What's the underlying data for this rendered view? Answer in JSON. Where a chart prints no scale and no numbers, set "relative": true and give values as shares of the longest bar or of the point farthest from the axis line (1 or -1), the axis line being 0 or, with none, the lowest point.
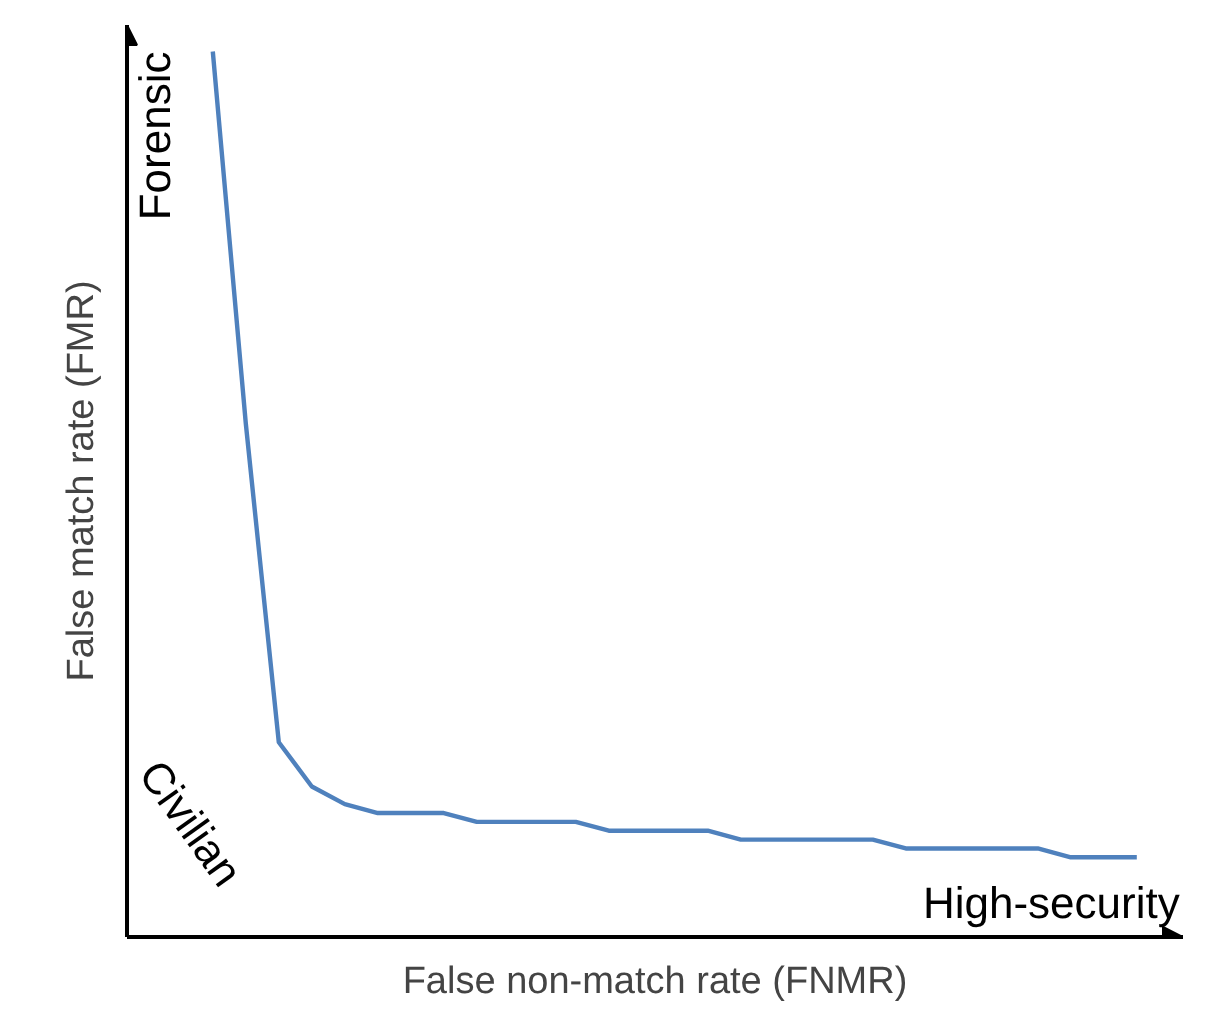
{
  "chart_data": {
    "type": "line",
    "relative": true,
    "xlabel": "False non-match rate (FNMR)",
    "ylabel": "False match rate (FMR)",
    "color": "#4f81bd",
    "categories": [
      null,
      null,
      null,
      null,
      null,
      null,
      null,
      null,
      null,
      null,
      null,
      null,
      null,
      null,
      null,
      null,
      null,
      null,
      null,
      null,
      null,
      null,
      null,
      null,
      null,
      null,
      null,
      null,
      null
    ],
    "values": [
      1.0,
      0.58,
      0.22,
      0.17,
      0.15,
      0.14,
      0.14,
      0.14,
      0.13,
      0.13,
      0.13,
      0.13,
      0.12,
      0.12,
      0.12,
      0.12,
      0.11,
      0.11,
      0.11,
      0.11,
      0.11,
      0.1,
      0.1,
      0.1,
      0.1,
      0.1,
      0.09,
      0.09,
      0.09
    ],
    "annotations": [
      "Forensic",
      "Civilian",
      "High-security"
    ]
  }
}
